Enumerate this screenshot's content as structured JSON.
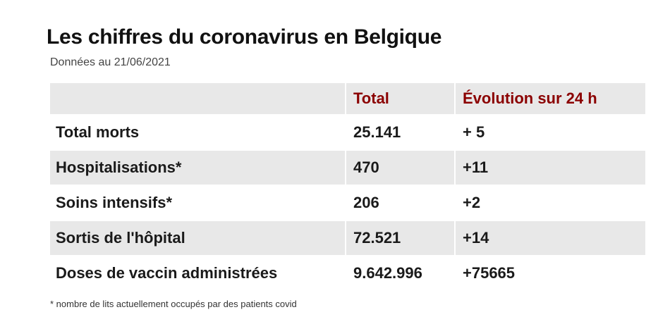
{
  "title": "Les chiffres du coronavirus en Belgique",
  "subtitle": "Données au 21/06/2021",
  "table": {
    "headers": [
      "",
      "Total",
      "Évolution sur 24 h"
    ],
    "rows": [
      {
        "label": "Total morts",
        "total": "25.141",
        "evolution": "+ 5"
      },
      {
        "label": "Hospitalisations*",
        "total": "470",
        "evolution": "+11"
      },
      {
        "label": "Soins intensifs*",
        "total": "206",
        "evolution": "+2"
      },
      {
        "label": "Sortis de l'hôpital",
        "total": "72.521",
        "evolution": "+14"
      },
      {
        "label": "Doses de vaccin administrées",
        "total": "9.642.996",
        "evolution": "+75665"
      }
    ]
  },
  "footnote": "* nombre de lits actuellement occupés par des patients covid",
  "colors": {
    "header_text": "#8b0000",
    "stripe": "#e8e8e8",
    "text": "#1a1a1a"
  }
}
